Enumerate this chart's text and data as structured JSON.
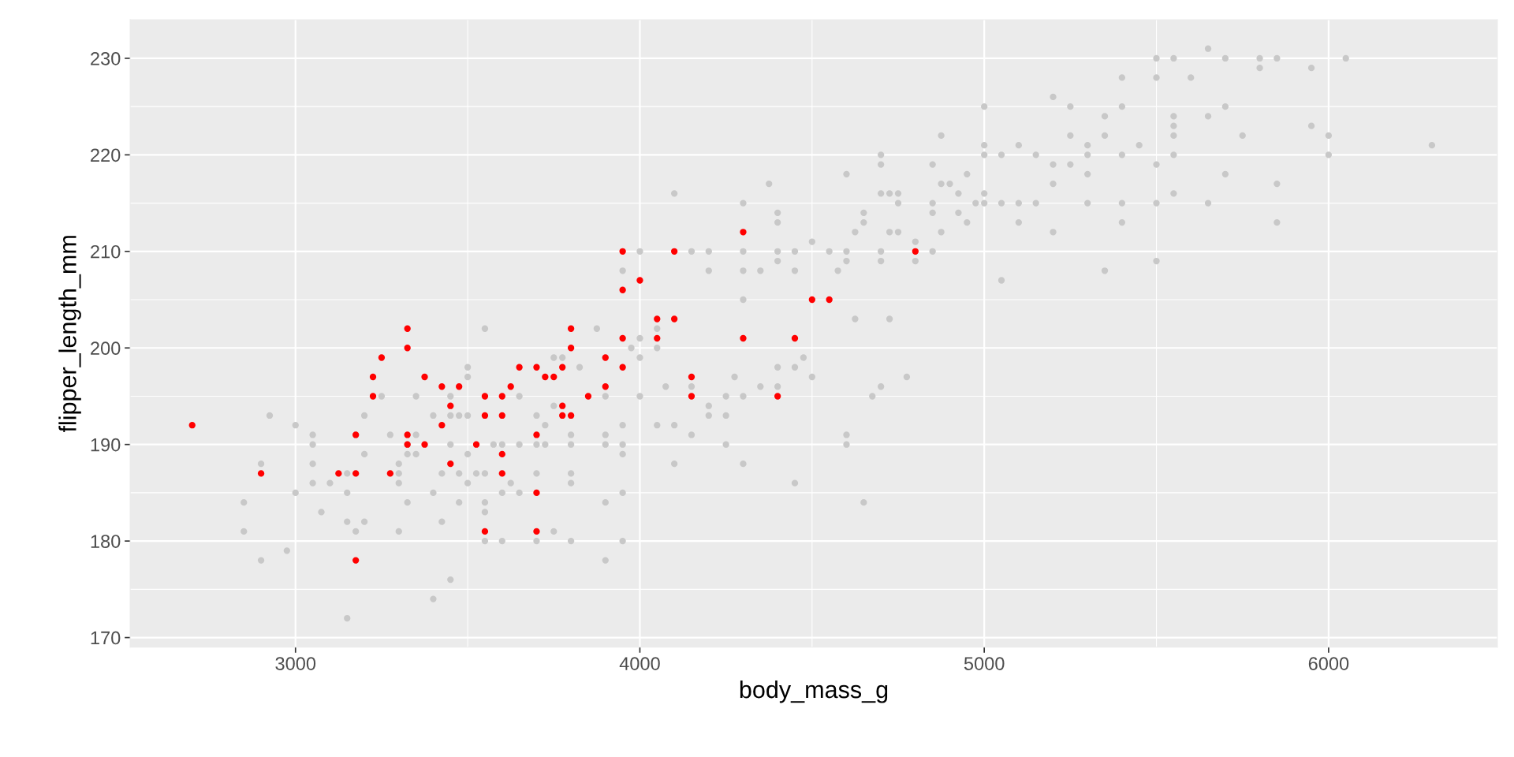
{
  "chart_data": {
    "type": "scatter",
    "xlabel": "body_mass_g",
    "ylabel": "flipper_length_mm",
    "xlim": [
      2520,
      6490
    ],
    "ylim": [
      169,
      234
    ],
    "xticks": [
      3000,
      4000,
      5000,
      6000
    ],
    "yticks": [
      170,
      180,
      190,
      200,
      210,
      220,
      230
    ],
    "grid": true,
    "marker": "circle",
    "series": [
      {
        "color": "#c8c8c8",
        "x": [
          2850,
          2850,
          2900,
          2900,
          2925,
          2975,
          3000,
          3000,
          3050,
          3050,
          3050,
          3050,
          3075,
          3100,
          3150,
          3150,
          3150,
          3150,
          3175,
          3175,
          3200,
          3200,
          3200,
          3250,
          3275,
          3300,
          3300,
          3300,
          3300,
          3325,
          3325,
          3325,
          3350,
          3350,
          3350,
          3400,
          3400,
          3400,
          3425,
          3425,
          3450,
          3450,
          3450,
          3450,
          3475,
          3475,
          3475,
          3500,
          3500,
          3500,
          3500,
          3500,
          3525,
          3550,
          3550,
          3550,
          3550,
          3550,
          3575,
          3600,
          3600,
          3600,
          3625,
          3650,
          3650,
          3650,
          3700,
          3700,
          3700,
          3700,
          3725,
          3725,
          3750,
          3750,
          3750,
          3775,
          3800,
          3800,
          3800,
          3800,
          3800,
          3825,
          3875,
          3900,
          3900,
          3900,
          3900,
          3900,
          3950,
          3950,
          3950,
          3950,
          3950,
          3950,
          3975,
          4000,
          4000,
          4000,
          4000,
          4050,
          4050,
          4050,
          4075,
          4100,
          4100,
          4100,
          4150,
          4150,
          4150,
          4200,
          4200,
          4200,
          4200,
          4250,
          4250,
          4250,
          4275,
          4300,
          4300,
          4300,
          4300,
          4300,
          4300,
          4350,
          4350,
          4375,
          4400,
          4400,
          4400,
          4400,
          4400,
          4400,
          4450,
          4450,
          4450,
          4450,
          4475,
          4500,
          4500,
          4550,
          4575,
          4600,
          4600,
          4600,
          4600,
          4600,
          4625,
          4625,
          4650,
          4650,
          4650,
          4675,
          4700,
          4700,
          4700,
          4700,
          4700,
          4700,
          4725,
          4725,
          4725,
          4750,
          4750,
          4750,
          4775,
          4800,
          4800,
          4850,
          4850,
          4850,
          4850,
          4875,
          4875,
          4875,
          4900,
          4925,
          4925,
          4950,
          4950,
          4975,
          5000,
          5000,
          5000,
          5000,
          5000,
          5050,
          5050,
          5050,
          5100,
          5100,
          5100,
          5150,
          5150,
          5200,
          5200,
          5200,
          5200,
          5250,
          5250,
          5250,
          5300,
          5300,
          5300,
          5300,
          5350,
          5350,
          5350,
          5400,
          5400,
          5400,
          5400,
          5400,
          5450,
          5500,
          5500,
          5500,
          5500,
          5500,
          5550,
          5550,
          5550,
          5550,
          5550,
          5550,
          5600,
          5650,
          5650,
          5650,
          5700,
          5700,
          5700,
          5750,
          5800,
          5800,
          5850,
          5850,
          5850,
          5950,
          5950,
          6000,
          6000,
          6050,
          6300
        ],
        "values": [
          184,
          181,
          188,
          178,
          193,
          179,
          192,
          185,
          191,
          190,
          188,
          186,
          183,
          186,
          187,
          185,
          182,
          172,
          191,
          181,
          193,
          189,
          182,
          195,
          191,
          188,
          187,
          186,
          181,
          190,
          189,
          184,
          195,
          191,
          189,
          193,
          185,
          174,
          187,
          182,
          195,
          193,
          190,
          176,
          193,
          187,
          184,
          198,
          197,
          193,
          189,
          186,
          187,
          202,
          187,
          184,
          183,
          180,
          190,
          190,
          185,
          180,
          186,
          195,
          190,
          185,
          193,
          190,
          187,
          180,
          192,
          190,
          199,
          194,
          181,
          199,
          191,
          190,
          187,
          186,
          180,
          198,
          202,
          195,
          191,
          190,
          184,
          178,
          192,
          190,
          189,
          185,
          180,
          208,
          200,
          210,
          201,
          199,
          195,
          202,
          200,
          192,
          196,
          216,
          192,
          188,
          210,
          196,
          191,
          210,
          208,
          194,
          193,
          195,
          193,
          190,
          197,
          215,
          210,
          208,
          205,
          195,
          188,
          208,
          196,
          217,
          214,
          213,
          210,
          209,
          198,
          196,
          210,
          208,
          198,
          186,
          199,
          211,
          197,
          210,
          208,
          218,
          210,
          209,
          191,
          190,
          212,
          203,
          214,
          213,
          184,
          195,
          220,
          219,
          216,
          210,
          209,
          196,
          216,
          212,
          203,
          216,
          215,
          212,
          197,
          211,
          209,
          219,
          215,
          214,
          210,
          222,
          217,
          212,
          217,
          216,
          214,
          218,
          213,
          215,
          225,
          221,
          220,
          216,
          215,
          220,
          215,
          207,
          221,
          215,
          213,
          220,
          215,
          226,
          219,
          217,
          212,
          225,
          222,
          219,
          221,
          220,
          218,
          215,
          224,
          222,
          208,
          228,
          225,
          220,
          215,
          213,
          221,
          230,
          228,
          219,
          215,
          209,
          230,
          224,
          223,
          222,
          220,
          216,
          228,
          231,
          224,
          215,
          230,
          225,
          218,
          222,
          230,
          229,
          230,
          217,
          213,
          229,
          223,
          222,
          220,
          230,
          221
        ]
      },
      {
        "color": "#ff0000",
        "x": [
          2700,
          2900,
          3125,
          3175,
          3175,
          3175,
          3225,
          3225,
          3250,
          3275,
          3325,
          3325,
          3325,
          3325,
          3375,
          3375,
          3425,
          3425,
          3450,
          3450,
          3475,
          3525,
          3550,
          3550,
          3550,
          3600,
          3600,
          3600,
          3600,
          3625,
          3650,
          3700,
          3700,
          3700,
          3700,
          3725,
          3750,
          3775,
          3775,
          3775,
          3800,
          3800,
          3800,
          3850,
          3900,
          3900,
          3950,
          3950,
          3950,
          3950,
          4000,
          4050,
          4050,
          4100,
          4100,
          4150,
          4150,
          4300,
          4300,
          4400,
          4450,
          4500,
          4550,
          4800
        ],
        "values": [
          192,
          187,
          187,
          191,
          187,
          178,
          195,
          197,
          199,
          187,
          202,
          200,
          191,
          190,
          197,
          190,
          196,
          192,
          188,
          194,
          196,
          190,
          195,
          193,
          181,
          195,
          193,
          189,
          187,
          196,
          198,
          198,
          191,
          185,
          181,
          197,
          197,
          198,
          194,
          193,
          202,
          200,
          193,
          195,
          199,
          196,
          210,
          206,
          201,
          198,
          207,
          203,
          201,
          210,
          203,
          197,
          195,
          212,
          201,
          195,
          201,
          205,
          205,
          210
        ]
      }
    ]
  }
}
